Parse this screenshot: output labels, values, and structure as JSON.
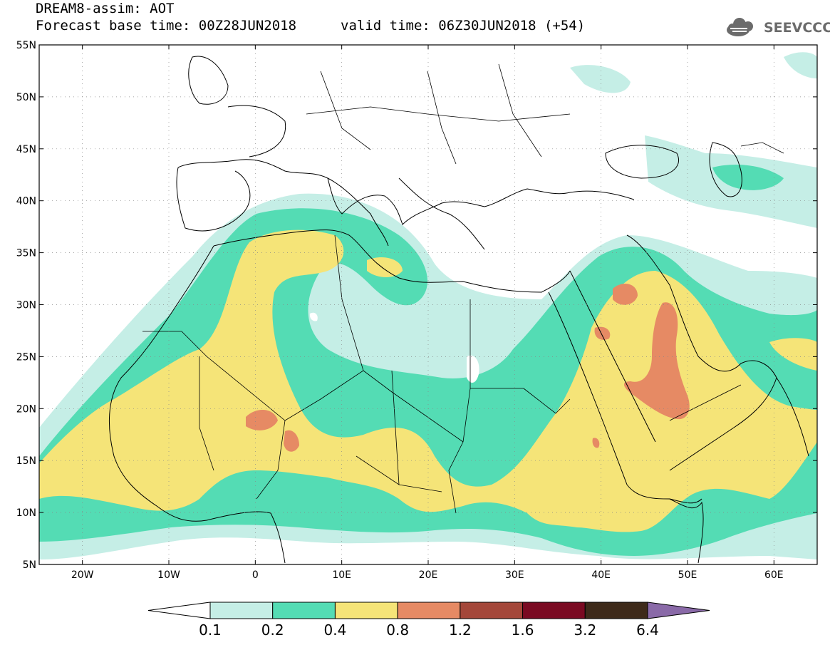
{
  "header": {
    "line1": "DREAM8-assim: AOT",
    "line2": "Forecast base time: 00Z28JUN2018",
    "valid": "valid time: 06Z30JUN2018 (+54)",
    "logo_text": "SEEVCCC"
  },
  "map": {
    "lon_range": [
      -25,
      65
    ],
    "lat_range": [
      5,
      55
    ],
    "lat_ticks": [
      {
        "value": 55,
        "label": "55N"
      },
      {
        "value": 50,
        "label": "50N"
      },
      {
        "value": 45,
        "label": "45N"
      },
      {
        "value": 40,
        "label": "40N"
      },
      {
        "value": 35,
        "label": "35N"
      },
      {
        "value": 30,
        "label": "30N"
      },
      {
        "value": 25,
        "label": "25N"
      },
      {
        "value": 20,
        "label": "20N"
      },
      {
        "value": 15,
        "label": "15N"
      },
      {
        "value": 10,
        "label": "10N"
      },
      {
        "value": 5,
        "label": "5N"
      }
    ],
    "lon_ticks": [
      {
        "value": -20,
        "label": "20W"
      },
      {
        "value": -10,
        "label": "10W"
      },
      {
        "value": 0,
        "label": "0"
      },
      {
        "value": 10,
        "label": "10E"
      },
      {
        "value": 20,
        "label": "20E"
      },
      {
        "value": 30,
        "label": "30E"
      },
      {
        "value": 40,
        "label": "40E"
      },
      {
        "value": 50,
        "label": "50E"
      },
      {
        "value": 60,
        "label": "60E"
      }
    ]
  },
  "colorbar": {
    "labels": [
      "0.1",
      "0.2",
      "0.4",
      "0.8",
      "1.2",
      "1.6",
      "3.2",
      "6.4"
    ],
    "colors": [
      "#ffffff",
      "#c5eee6",
      "#54dcb4",
      "#f5e478",
      "#e68a64",
      "#a4473a",
      "#7a0a22",
      "#3e2a1a",
      "#8a6aa8"
    ]
  },
  "colors": {
    "c01": "#c5eee6",
    "c02": "#54dcb4",
    "c04": "#f5e478",
    "c08": "#e68a64"
  }
}
